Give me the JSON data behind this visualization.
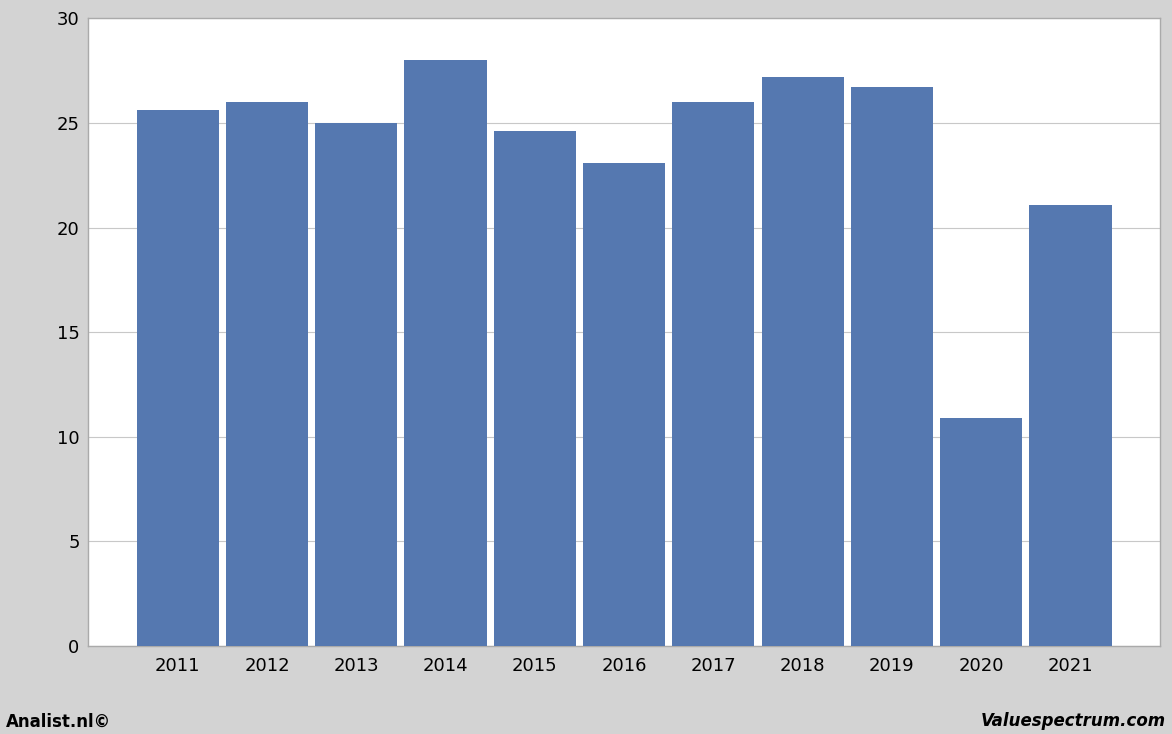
{
  "categories": [
    "2011",
    "2012",
    "2013",
    "2014",
    "2015",
    "2016",
    "2017",
    "2018",
    "2019",
    "2020",
    "2021"
  ],
  "values": [
    25.6,
    26.0,
    25.0,
    28.0,
    24.6,
    23.1,
    26.0,
    27.2,
    26.7,
    10.9,
    21.1
  ],
  "bar_color": "#5578b0",
  "ylim": [
    0,
    30
  ],
  "yticks": [
    0,
    5,
    10,
    15,
    20,
    25,
    30
  ],
  "plot_bg_color": "#ffffff",
  "outer_bg_color": "#d3d3d3",
  "grid_color": "#c8c8c8",
  "footer_left": "Analist.nl©",
  "footer_right": "Valuespectrum.com",
  "bar_width": 0.92
}
